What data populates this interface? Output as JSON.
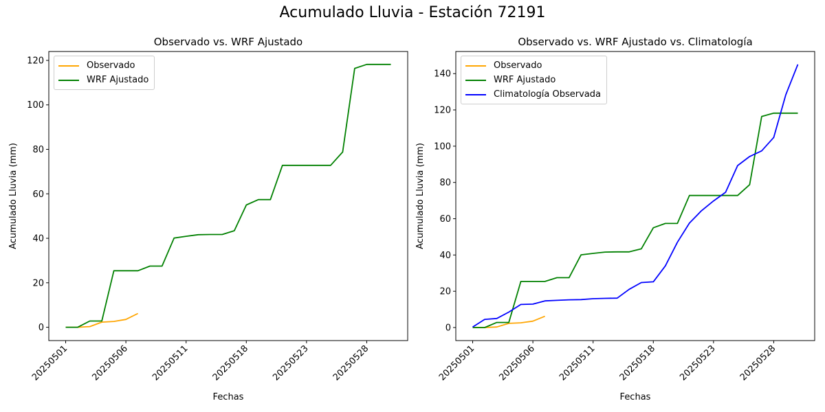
{
  "figure": {
    "title": "Acumulado Lluvia - Estación 72191"
  },
  "chart_data": [
    {
      "type": "line",
      "title": "Observado vs. WRF Ajustado",
      "xlabel": "Fechas",
      "ylabel": "Acumulado Lluvia (mm)",
      "x_tick_labels": [
        "20250501",
        "20250506",
        "20250511",
        "20250518",
        "20250523",
        "20250528"
      ],
      "x_tick_positions": [
        0,
        5,
        10,
        15,
        20,
        25
      ],
      "xlim": [
        -1.4,
        28.4
      ],
      "ylim": [
        -6,
        124
      ],
      "y_ticks": [
        0,
        20,
        40,
        60,
        80,
        100,
        120
      ],
      "grid": false,
      "legend_position": "upper left",
      "series": [
        {
          "name": "Observado",
          "color": "#FFA500",
          "x": [
            0,
            1,
            2,
            3,
            4,
            5,
            6
          ],
          "y": [
            0,
            0,
            0.3,
            2.3,
            2.6,
            3.5,
            6.2
          ]
        },
        {
          "name": "WRF Ajustado",
          "color": "#008000",
          "x": [
            0,
            1,
            2,
            3,
            4,
            5,
            6,
            7,
            8,
            9,
            10,
            11,
            12,
            13,
            14,
            15,
            16,
            17,
            18,
            19,
            20,
            21,
            22,
            23,
            24,
            25,
            26,
            27
          ],
          "y": [
            0,
            0,
            2.8,
            2.8,
            25.4,
            25.4,
            25.4,
            27.5,
            27.5,
            40.1,
            40.9,
            41.6,
            41.7,
            41.7,
            43.4,
            55.0,
            57.4,
            57.4,
            72.8,
            72.8,
            72.8,
            72.8,
            72.8,
            78.8,
            116.4,
            118.2,
            118.2,
            118.2
          ]
        }
      ]
    },
    {
      "type": "line",
      "title": "Observado vs. WRF Ajustado vs. Climatología",
      "xlabel": "Fechas",
      "ylabel": "Acumulado Lluvia (mm)",
      "x_tick_labels": [
        "20250501",
        "20250506",
        "20250511",
        "20250518",
        "20250523",
        "20250528"
      ],
      "x_tick_positions": [
        0,
        5,
        10,
        15,
        20,
        25
      ],
      "xlim": [
        -1.4,
        28.4
      ],
      "ylim": [
        -7.2,
        152.2
      ],
      "y_ticks": [
        0,
        20,
        40,
        60,
        80,
        100,
        120,
        140
      ],
      "grid": false,
      "legend_position": "upper left",
      "series": [
        {
          "name": "Observado",
          "color": "#FFA500",
          "x": [
            0,
            1,
            2,
            3,
            4,
            5,
            6
          ],
          "y": [
            0,
            0,
            0.3,
            2.3,
            2.6,
            3.5,
            6.2
          ]
        },
        {
          "name": "WRF Ajustado",
          "color": "#008000",
          "x": [
            0,
            1,
            2,
            3,
            4,
            5,
            6,
            7,
            8,
            9,
            10,
            11,
            12,
            13,
            14,
            15,
            16,
            17,
            18,
            19,
            20,
            21,
            22,
            23,
            24,
            25,
            26,
            27
          ],
          "y": [
            0,
            0,
            2.8,
            2.8,
            25.4,
            25.4,
            25.4,
            27.5,
            27.5,
            40.1,
            40.9,
            41.6,
            41.7,
            41.7,
            43.4,
            55.0,
            57.4,
            57.4,
            72.8,
            72.8,
            72.8,
            72.8,
            72.8,
            78.8,
            116.4,
            118.2,
            118.2,
            118.2
          ]
        },
        {
          "name": "Climatología Observada",
          "color": "#0000FF",
          "x": [
            0,
            1,
            2,
            3,
            4,
            5,
            6,
            7,
            8,
            9,
            10,
            11,
            12,
            13,
            14,
            15,
            16,
            17,
            18,
            19,
            20,
            21,
            22,
            23,
            24,
            25,
            26,
            27
          ],
          "y": [
            0.3,
            4.5,
            5.0,
            8.5,
            12.7,
            12.9,
            14.7,
            15.0,
            15.3,
            15.4,
            15.9,
            16.1,
            16.2,
            21.1,
            24.8,
            25.2,
            34.0,
            47.0,
            57.6,
            64.4,
            69.8,
            74.6,
            89.3,
            94.3,
            97.4,
            104.8,
            128.4,
            145.1
          ]
        }
      ]
    }
  ]
}
